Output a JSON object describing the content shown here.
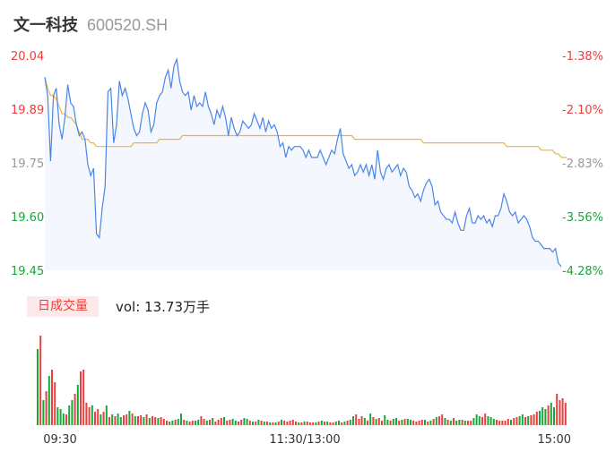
{
  "header": {
    "stock_name": "文一科技",
    "stock_code": "600520.SH"
  },
  "volume_panel": {
    "tab_label": "日成交量",
    "vol_prefix": "vol: ",
    "vol_value": "13.73万手"
  },
  "colors": {
    "price_line": "#4a86e8",
    "avg_line": "#f0b43c",
    "up": "#e8413f",
    "down": "#1aa63c",
    "area_fill": "#f4f7fd"
  },
  "chart_data": [
    {
      "type": "line",
      "title": "",
      "y_tick_labels": [
        "20.04",
        "19.89",
        "19.75",
        "19.60",
        "19.45"
      ],
      "y_pct_labels": [
        "-1.38%",
        "-2.10%",
        "-2.83%",
        "-3.56%",
        "-4.28%"
      ],
      "ylim": [
        19.45,
        20.04
      ],
      "x_tick_labels": [
        "09:30",
        "11:30/13:00",
        "15:00"
      ],
      "grid": false,
      "series": [
        {
          "id": "price",
          "values": [
            19.98,
            19.93,
            19.75,
            19.93,
            19.95,
            19.85,
            19.81,
            19.87,
            19.96,
            19.91,
            19.9,
            19.85,
            19.82,
            19.83,
            19.81,
            19.74,
            19.71,
            19.73,
            19.55,
            19.54,
            19.62,
            19.68,
            19.94,
            19.95,
            19.8,
            19.85,
            19.97,
            19.93,
            19.95,
            19.92,
            19.88,
            19.84,
            19.82,
            19.83,
            19.88,
            19.91,
            19.89,
            19.83,
            19.85,
            19.91,
            19.93,
            19.94,
            19.98,
            20.0,
            19.95,
            20.01,
            20.03,
            19.97,
            19.94,
            19.93,
            19.94,
            19.89,
            19.93,
            19.9,
            19.91,
            19.9,
            19.94,
            19.9,
            19.88,
            19.85,
            19.89,
            19.87,
            19.9,
            19.87,
            19.82,
            19.87,
            19.84,
            19.82,
            19.83,
            19.86,
            19.85,
            19.84,
            19.85,
            19.88,
            19.86,
            19.84,
            19.87,
            19.83,
            19.86,
            19.84,
            19.85,
            19.83,
            19.79,
            19.8,
            19.76,
            19.79,
            19.78,
            19.79,
            19.79,
            19.79,
            19.78,
            19.76,
            19.78,
            19.76,
            19.76,
            19.76,
            19.78,
            19.76,
            19.74,
            19.76,
            19.78,
            19.77,
            19.81,
            19.84,
            19.77,
            19.75,
            19.73,
            19.74,
            19.71,
            19.72,
            19.74,
            19.72,
            19.74,
            19.71,
            19.74,
            19.7,
            19.78,
            19.72,
            19.7,
            19.73,
            19.74,
            19.72,
            19.73,
            19.74,
            19.71,
            19.73,
            19.72,
            19.68,
            19.67,
            19.65,
            19.66,
            19.64,
            19.67,
            19.69,
            19.7,
            19.68,
            19.63,
            19.64,
            19.61,
            19.6,
            19.59,
            19.59,
            19.58,
            19.61,
            19.58,
            19.56,
            19.56,
            19.6,
            19.62,
            19.58,
            19.58,
            19.6,
            19.59,
            19.6,
            19.58,
            19.59,
            19.57,
            19.6,
            19.6,
            19.62,
            19.66,
            19.64,
            19.61,
            19.6,
            19.61,
            19.58,
            19.59,
            19.6,
            19.59,
            19.57,
            19.54,
            19.53,
            19.53,
            19.52,
            19.51,
            19.51,
            19.51,
            19.5,
            19.51,
            19.47,
            19.46
          ]
        },
        {
          "id": "average",
          "values": [
            19.98,
            19.95,
            19.93,
            19.93,
            19.92,
            19.9,
            19.88,
            19.88,
            19.87,
            19.87,
            19.86,
            19.85,
            19.83,
            19.81,
            19.81,
            19.81,
            19.8,
            19.8,
            19.79,
            19.79,
            19.79,
            19.79,
            19.79,
            19.79,
            19.79,
            19.79,
            19.79,
            19.79,
            19.79,
            19.79,
            19.79,
            19.8,
            19.8,
            19.8,
            19.8,
            19.8,
            19.8,
            19.8,
            19.8,
            19.8,
            19.81,
            19.81,
            19.81,
            19.81,
            19.81,
            19.81,
            19.81,
            19.81,
            19.82,
            19.82,
            19.82,
            19.82,
            19.82,
            19.82,
            19.82,
            19.82,
            19.82,
            19.82,
            19.82,
            19.82,
            19.82,
            19.82,
            19.82,
            19.82,
            19.82,
            19.82,
            19.82,
            19.82,
            19.82,
            19.82,
            19.82,
            19.82,
            19.82,
            19.82,
            19.82,
            19.82,
            19.82,
            19.82,
            19.82,
            19.82,
            19.82,
            19.82,
            19.82,
            19.82,
            19.82,
            19.82,
            19.82,
            19.82,
            19.82,
            19.82,
            19.82,
            19.82,
            19.82,
            19.82,
            19.82,
            19.82,
            19.82,
            19.82,
            19.82,
            19.82,
            19.82,
            19.82,
            19.82,
            19.82,
            19.82,
            19.82,
            19.82,
            19.82,
            19.81,
            19.81,
            19.81,
            19.81,
            19.81,
            19.81,
            19.81,
            19.81,
            19.81,
            19.81,
            19.81,
            19.81,
            19.81,
            19.81,
            19.81,
            19.81,
            19.81,
            19.81,
            19.81,
            19.81,
            19.81,
            19.81,
            19.81,
            19.81,
            19.8,
            19.8,
            19.8,
            19.8,
            19.8,
            19.8,
            19.8,
            19.8,
            19.8,
            19.8,
            19.8,
            19.8,
            19.8,
            19.8,
            19.8,
            19.8,
            19.8,
            19.8,
            19.8,
            19.8,
            19.8,
            19.8,
            19.8,
            19.8,
            19.8,
            19.8,
            19.8,
            19.8,
            19.8,
            19.79,
            19.79,
            19.79,
            19.79,
            19.79,
            19.79,
            19.79,
            19.79,
            19.79,
            19.79,
            19.79,
            19.79,
            19.78,
            19.78,
            19.78,
            19.78,
            19.78,
            19.77,
            19.77,
            19.76,
            19.76,
            19.76
          ]
        }
      ]
    },
    {
      "type": "bar",
      "title": "",
      "values": [
        0.85,
        1.0,
        0.28,
        0.38,
        0.55,
        0.62,
        0.48,
        0.2,
        0.18,
        0.13,
        0.12,
        0.22,
        0.28,
        0.35,
        0.45,
        0.6,
        0.62,
        0.25,
        0.2,
        0.22,
        0.15,
        0.18,
        0.12,
        0.15,
        0.22,
        0.09,
        0.12,
        0.1,
        0.13,
        0.09,
        0.11,
        0.12,
        0.16,
        0.13,
        0.1,
        0.1,
        0.11,
        0.09,
        0.12,
        0.08,
        0.1,
        0.09,
        0.08,
        0.09,
        0.07,
        0.05,
        0.04,
        0.05,
        0.06,
        0.07,
        0.13,
        0.06,
        0.05,
        0.04,
        0.05,
        0.05,
        0.06,
        0.1,
        0.07,
        0.05,
        0.06,
        0.08,
        0.04,
        0.06,
        0.08,
        0.09,
        0.05,
        0.06,
        0.07,
        0.05,
        0.04,
        0.06,
        0.08,
        0.07,
        0.05,
        0.04,
        0.04,
        0.06,
        0.05,
        0.04,
        0.04,
        0.03,
        0.03,
        0.03,
        0.04,
        0.06,
        0.05,
        0.04,
        0.05,
        0.06,
        0.04,
        0.03,
        0.03,
        0.04,
        0.04,
        0.03,
        0.03,
        0.03,
        0.04,
        0.05,
        0.04,
        0.04,
        0.03,
        0.03,
        0.04,
        0.05,
        0.03,
        0.04,
        0.05,
        0.06,
        0.1,
        0.12,
        0.07,
        0.1,
        0.08,
        0.05,
        0.13,
        0.09,
        0.07,
        0.08,
        0.05,
        0.11,
        0.06,
        0.05,
        0.07,
        0.08,
        0.05,
        0.06,
        0.07,
        0.07,
        0.06,
        0.05,
        0.04,
        0.05,
        0.06,
        0.06,
        0.04,
        0.05,
        0.07,
        0.09,
        0.1,
        0.12,
        0.08,
        0.06,
        0.05,
        0.08,
        0.05,
        0.06,
        0.06,
        0.05,
        0.05,
        0.05,
        0.08,
        0.12,
        0.1,
        0.09,
        0.13,
        0.1,
        0.09,
        0.07,
        0.06,
        0.05,
        0.05,
        0.05,
        0.07,
        0.06,
        0.08,
        0.09,
        0.1,
        0.12,
        0.09,
        0.1,
        0.11,
        0.12,
        0.15,
        0.16,
        0.2,
        0.18,
        0.22,
        0.25,
        0.2,
        0.35,
        0.28,
        0.3,
        0.25
      ],
      "directions": [
        "down",
        "up",
        "down",
        "up",
        "down",
        "up",
        "up",
        "down",
        "down",
        "down",
        "up",
        "down",
        "down",
        "up",
        "down",
        "up",
        "up",
        "up",
        "up",
        "down",
        "up",
        "up",
        "down",
        "up",
        "down",
        "up",
        "down",
        "up",
        "down",
        "down",
        "up",
        "up",
        "down",
        "up",
        "down",
        "up",
        "up",
        "down",
        "up",
        "down",
        "up",
        "up",
        "down",
        "up",
        "up",
        "up",
        "down",
        "down",
        "up",
        "down",
        "down",
        "up",
        "down",
        "up",
        "up",
        "down",
        "down",
        "up",
        "up",
        "down",
        "up",
        "down",
        "up",
        "up",
        "up",
        "down",
        "up",
        "up",
        "down",
        "down",
        "up",
        "up",
        "down",
        "down",
        "up",
        "down",
        "up",
        "down",
        "up",
        "down",
        "up",
        "down",
        "up",
        "down",
        "up",
        "down",
        "up",
        "up",
        "up",
        "up",
        "up",
        "down",
        "up",
        "down",
        "up",
        "up",
        "up",
        "down",
        "up",
        "down",
        "up",
        "down",
        "up",
        "up",
        "down",
        "down",
        "up",
        "down",
        "up",
        "down",
        "down",
        "up",
        "up",
        "up",
        "down",
        "up",
        "down",
        "up",
        "down",
        "up",
        "up",
        "down",
        "down",
        "up",
        "down",
        "down",
        "up",
        "down",
        "up",
        "down",
        "down",
        "up",
        "up",
        "up",
        "up",
        "down",
        "up",
        "down",
        "up",
        "down",
        "up",
        "up",
        "down",
        "up",
        "down",
        "up",
        "down",
        "down",
        "up",
        "down",
        "up",
        "up",
        "down",
        "down",
        "down",
        "up",
        "up",
        "down",
        "down",
        "down",
        "up",
        "up",
        "up",
        "up",
        "up",
        "down",
        "up",
        "up",
        "down",
        "down",
        "up",
        "down",
        "up",
        "up",
        "up",
        "down",
        "down",
        "down",
        "up",
        "down",
        "down",
        "up",
        "up",
        "up",
        "up",
        "down"
      ]
    }
  ]
}
